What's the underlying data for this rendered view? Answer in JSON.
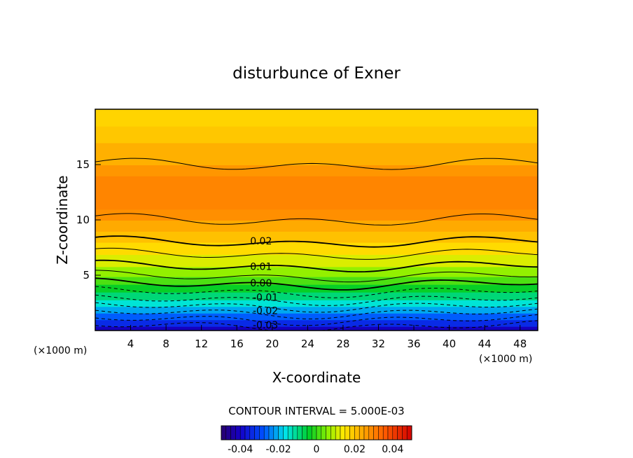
{
  "chart_data": {
    "type": "heatmap",
    "title": "disturbunce of Exner",
    "xlabel": "X-coordinate",
    "ylabel": "Z-coordinate",
    "x_unit": "(×1000 m)",
    "z_unit": "(×1000 m)",
    "xlim": [
      0,
      50
    ],
    "ylim": [
      0,
      20
    ],
    "x_ticks": [
      4,
      8,
      12,
      16,
      20,
      24,
      28,
      32,
      36,
      40,
      44,
      48
    ],
    "y_ticks": [
      5,
      10,
      15
    ],
    "contour_interval_text": "CONTOUR INTERVAL = 5.000E-03",
    "contour_labels": [
      {
        "text": "0.02",
        "value": 0.02,
        "x": 17.5,
        "z": 8.1
      },
      {
        "text": "0.01",
        "value": 0.01,
        "x": 17.5,
        "z": 5.8
      },
      {
        "text": "0.00",
        "value": 0.0,
        "x": 17.5,
        "z": 4.3
      },
      {
        "text": "-0.01",
        "value": -0.01,
        "x": 17.8,
        "z": 3.0
      },
      {
        "text": "-0.02",
        "value": -0.02,
        "x": 17.8,
        "z": 1.8
      },
      {
        "text": "-0.03",
        "value": -0.03,
        "x": 17.8,
        "z": 0.5
      }
    ],
    "contour_lines": [
      {
        "value": 0.03,
        "style": "solid",
        "z": 15.0
      },
      {
        "value": 0.03,
        "style": "solid",
        "z": 10.0
      },
      {
        "value": 0.02,
        "style": "solid",
        "z": 8.0
      },
      {
        "value": 0.015,
        "style": "solid",
        "z": 6.9
      },
      {
        "value": 0.01,
        "style": "solid",
        "z": 5.8
      },
      {
        "value": 0.005,
        "style": "solid",
        "z": 4.9
      },
      {
        "value": 0.0,
        "style": "solid",
        "z": 4.2
      },
      {
        "value": -0.005,
        "style": "dashed",
        "z": 3.5
      },
      {
        "value": -0.01,
        "style": "dashed",
        "z": 2.8
      },
      {
        "value": -0.015,
        "style": "dashed",
        "z": 2.2
      },
      {
        "value": -0.02,
        "style": "dashed",
        "z": 1.6
      },
      {
        "value": -0.025,
        "style": "dashed",
        "z": 1.0
      },
      {
        "value": -0.03,
        "style": "dashed",
        "z": 0.4
      }
    ],
    "colorbar": {
      "range": [
        -0.05,
        0.05
      ],
      "ticks": [
        {
          "label": "-0.04",
          "value": -0.04
        },
        {
          "label": "-0.02",
          "value": -0.02
        },
        {
          "label": "0",
          "value": 0
        },
        {
          "label": "0.02",
          "value": 0.02
        },
        {
          "label": "0.04",
          "value": 0.04
        }
      ]
    },
    "colors": {
      "dark_blue": "#1a00a0",
      "blue": "#0040ff",
      "cyan": "#00e0e0",
      "green": "#00d000",
      "yellow_green": "#b0ff00",
      "yellow": "#ffe000",
      "orange": "#ffa000",
      "red": "#ff3000"
    }
  }
}
